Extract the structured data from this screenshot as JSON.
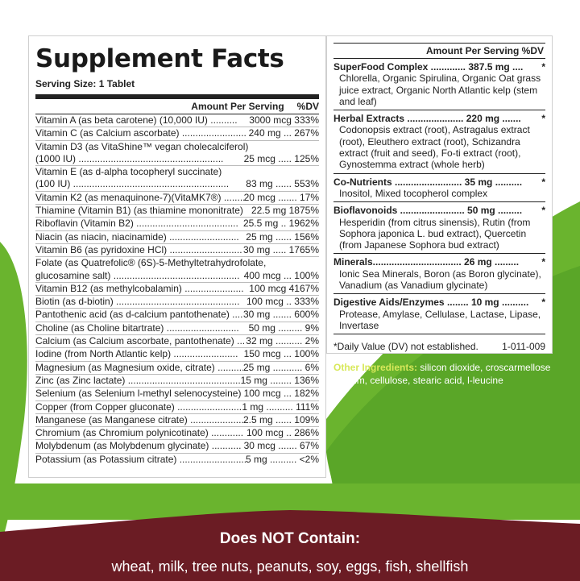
{
  "facts": {
    "title": "Supplement Facts",
    "serving_size": "Serving Size: 1 Tablet",
    "amount_header": "Amount Per Serving",
    "dv_header": "%DV",
    "rows": [
      {
        "name": "Vitamin A (as beta carotene) (10,000 IU) ..........",
        "value": "3000 mcg   333%"
      },
      {
        "name": "Vitamin C (as Calcium ascorbate) ........................",
        "value": "240 mg ... 267%"
      },
      {
        "name": "Vitamin D3  (as VitaShine™ vegan cholecalciferol)",
        "value": "",
        "cont": true
      },
      {
        "name": "(1000 IU) ......................................................",
        "value": "25 mcg ..... 125%"
      },
      {
        "name": "Vitamin E (as d-alpha tocopheryl succinate)",
        "value": "",
        "cont": true
      },
      {
        "name": "(100 IU) ..........................................................",
        "value": "83 mg ...... 553%"
      },
      {
        "name": "Vitamin K2 (as menaquinone-7)(VitaMK7®) ........",
        "value": "20 mcg ....... 17%"
      },
      {
        "name": "Thiamine (Vitamin B1) (as thiamine mononitrate)",
        "value": "22.5 mg   1875%"
      },
      {
        "name": "Riboflavin (Vitamin B2) ......................................",
        "value": "25.5 mg .. 1962%"
      },
      {
        "name": "Niacin (as niacin, niacinamide) ..........................",
        "value": "25 mg ...... 156%"
      },
      {
        "name": "Vitamin B6 (as pyridoxine HCl) ...........................",
        "value": "30 mg ..... 1765%"
      },
      {
        "name": "Folate (as Quatrefolic® (6S)-5-Methyltetrahydrofolate,",
        "value": "",
        "cont": true
      },
      {
        "name": "glucosamine salt) ...............................................",
        "value": "400 mcg ... 100%"
      },
      {
        "name": "Vitamin B12 (as methylcobalamin) ......................",
        "value": "100 mcg   4167%"
      },
      {
        "name": "Biotin (as d-biotin) ..............................................",
        "value": "100 mcg .. 333%"
      },
      {
        "name": "Pantothenic acid (as d-calcium pantothenate) ....",
        "value": "30 mg ....... 600%"
      },
      {
        "name": "Choline (as Choline bitartrate) ...........................",
        "value": "50 mg ......... 9%"
      },
      {
        "name": "Calcium (as Calcium ascorbate, pantothenate) ....",
        "value": "32 mg .......... 2%"
      },
      {
        "name": "Iodine (from North Atlantic kelp) ........................",
        "value": "150 mcg ... 100%"
      },
      {
        "name": "Magnesium (as Magnesium oxide, citrate) ..........",
        "value": "25 mg ........... 6%"
      },
      {
        "name": "Zinc (as Zinc lactate) ...........................................",
        "value": "15 mg ........ 136%"
      },
      {
        "name": "Selenium (as Selenium l-methyl selenocysteine) ..",
        "value": "100 mcg ... 182%"
      },
      {
        "name": "Copper (from Copper gluconate) .........................",
        "value": "1 mg .......... 111%"
      },
      {
        "name": "Manganese (as Manganese citrate) ....................",
        "value": "2.5 mg ...... 109%"
      },
      {
        "name": "Chromium (as Chromium polynicotinate) ............",
        "value": "100 mcg .. 286%"
      },
      {
        "name": "Molybdenum (as Molybdenum glycinate) ...........",
        "value": "30 mcg ....... 67%"
      },
      {
        "name": "Potassium (as Potassium citrate) .........................",
        "value": "5 mg .......... <2%"
      }
    ]
  },
  "blend": {
    "header": "Amount Per Serving  %DV",
    "groups": [
      {
        "name": "SuperFood Complex ............. 387.5 mg ....",
        "mark": "*",
        "detail": "Chlorella, Organic Spirulina, Organic Oat grass juice extract, Organic North Atlantic kelp (stem and leaf)"
      },
      {
        "name": "Herbal Extracts ..................... 220 mg .......",
        "mark": "*",
        "detail": "Codonopsis extract (root), Astragalus extract (root), Eleuthero extract (root), Schizandra extract (fruit and seed), Fo-ti extract (root), Gynostemma extract (whole herb)"
      },
      {
        "name": "Co-Nutrients ......................... 35 mg ..........",
        "mark": "*",
        "detail": "Inositol, Mixed tocopherol complex"
      },
      {
        "name": "Bioflavonoids ........................ 50 mg .........",
        "mark": "*",
        "detail": "Hesperidin (from citrus sinensis), Rutin (from Sophora japonica L. bud extract), Quercetin (from Japanese Sophora bud extract)"
      },
      {
        "name": "Minerals................................. 26 mg .........",
        "mark": "*",
        "detail": "Ionic Sea Minerals, Boron (as Boron glycinate), Vanadium (as Vanadium glycinate)"
      },
      {
        "name": "Digestive Aids/Enzymes ........ 10 mg ..........",
        "mark": "*",
        "detail": "Protease, Amylase, Cellulase, Lactase, Lipase, Invertase"
      }
    ],
    "footnote": "*Daily Value (DV) not established.",
    "code": "1-011-009"
  },
  "other": {
    "label": "Other Ingredients:",
    "text": " silicon dioxide, croscarmellose sodium, cellulose, stearic acid, l-leucine"
  },
  "contains": {
    "heading": "Does NOT Contain:",
    "list": "wheat, milk, tree nuts, peanuts, soy, eggs, fish, shellfish"
  },
  "colors": {
    "green": "#6ab42e",
    "dark_green": "#4e9a22",
    "maroon": "#6b1c24",
    "lime_text": "#d8e85a"
  }
}
